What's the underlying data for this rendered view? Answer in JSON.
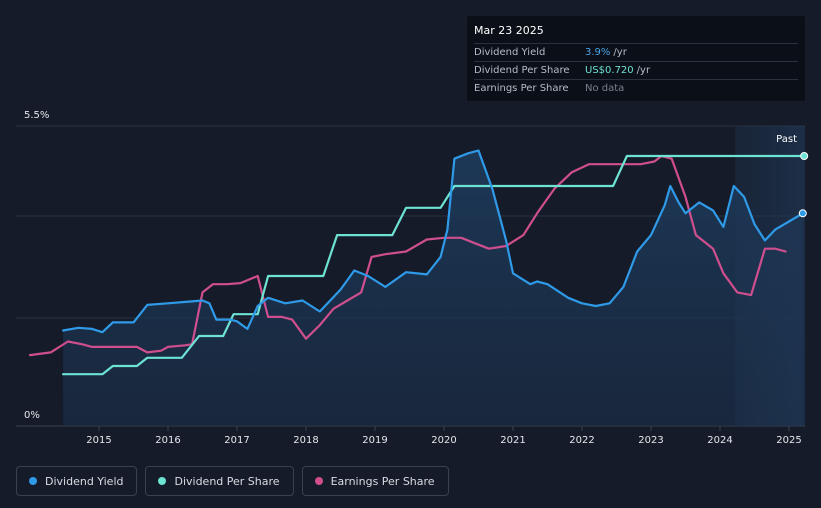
{
  "tooltip": {
    "date": "Mar 23 2025",
    "rows": [
      {
        "label": "Dividend Yield",
        "value": "3.9%",
        "unit": "/yr"
      },
      {
        "label": "Dividend Per Share",
        "value": "US$0.720",
        "unit": "/yr"
      },
      {
        "label": "Earnings Per Share",
        "value": "No data",
        "unit": ""
      }
    ]
  },
  "past_label": "Past",
  "colors": {
    "dividend_yield": "#2f9ae8",
    "dividend_per_share": "#6de3d3",
    "earnings_per_share": "#cf4f8e",
    "background": "#151b28"
  },
  "legend": [
    "Dividend Yield",
    "Dividend Per Share",
    "Earnings Per Share"
  ],
  "chart_data": {
    "type": "line",
    "y_tick_labels": [
      "0%",
      "5.5%"
    ],
    "ylim": [
      0,
      5.5
    ],
    "xlim": [
      2014.5,
      2025.22
    ],
    "x_ticks": [
      2015,
      2016,
      2017,
      2018,
      2019,
      2020,
      2021,
      2022,
      2023,
      2024,
      2025
    ],
    "series": [
      {
        "name": "Dividend Yield",
        "points": [
          [
            2014.48,
            1.75
          ],
          [
            2014.7,
            1.8
          ],
          [
            2014.9,
            1.78
          ],
          [
            2015.05,
            1.72
          ],
          [
            2015.2,
            1.9
          ],
          [
            2015.5,
            1.9
          ],
          [
            2015.7,
            2.22
          ],
          [
            2016.0,
            2.25
          ],
          [
            2016.3,
            2.28
          ],
          [
            2016.5,
            2.3
          ],
          [
            2016.6,
            2.25
          ],
          [
            2016.7,
            1.95
          ],
          [
            2016.9,
            1.95
          ],
          [
            2017.0,
            1.92
          ],
          [
            2017.15,
            1.78
          ],
          [
            2017.3,
            2.2
          ],
          [
            2017.45,
            2.35
          ],
          [
            2017.7,
            2.25
          ],
          [
            2017.95,
            2.3
          ],
          [
            2018.2,
            2.1
          ],
          [
            2018.5,
            2.5
          ],
          [
            2018.7,
            2.85
          ],
          [
            2018.9,
            2.75
          ],
          [
            2019.15,
            2.55
          ],
          [
            2019.45,
            2.82
          ],
          [
            2019.75,
            2.78
          ],
          [
            2019.95,
            3.1
          ],
          [
            2020.05,
            3.6
          ],
          [
            2020.15,
            4.9
          ],
          [
            2020.35,
            5.0
          ],
          [
            2020.5,
            5.05
          ],
          [
            2020.7,
            4.35
          ],
          [
            2020.9,
            3.4
          ],
          [
            2021.0,
            2.8
          ],
          [
            2021.25,
            2.6
          ],
          [
            2021.35,
            2.65
          ],
          [
            2021.5,
            2.6
          ],
          [
            2021.8,
            2.35
          ],
          [
            2022.0,
            2.25
          ],
          [
            2022.2,
            2.2
          ],
          [
            2022.4,
            2.25
          ],
          [
            2022.6,
            2.55
          ],
          [
            2022.8,
            3.2
          ],
          [
            2023.0,
            3.5
          ],
          [
            2023.2,
            4.05
          ],
          [
            2023.28,
            4.4
          ],
          [
            2023.4,
            4.1
          ],
          [
            2023.5,
            3.9
          ],
          [
            2023.7,
            4.1
          ],
          [
            2023.9,
            3.95
          ],
          [
            2024.05,
            3.65
          ],
          [
            2024.2,
            4.4
          ],
          [
            2024.35,
            4.2
          ],
          [
            2024.5,
            3.7
          ],
          [
            2024.65,
            3.4
          ],
          [
            2024.8,
            3.6
          ],
          [
            2025.0,
            3.75
          ],
          [
            2025.2,
            3.9
          ]
        ]
      },
      {
        "name": "Dividend Per Share",
        "points": [
          [
            2014.48,
            0.95
          ],
          [
            2015.05,
            0.95
          ],
          [
            2015.2,
            1.1
          ],
          [
            2015.55,
            1.1
          ],
          [
            2015.7,
            1.25
          ],
          [
            2016.2,
            1.25
          ],
          [
            2016.45,
            1.65
          ],
          [
            2016.8,
            1.65
          ],
          [
            2016.95,
            2.05
          ],
          [
            2017.3,
            2.05
          ],
          [
            2017.45,
            2.75
          ],
          [
            2018.25,
            2.75
          ],
          [
            2018.45,
            3.5
          ],
          [
            2019.25,
            3.5
          ],
          [
            2019.45,
            4.0
          ],
          [
            2019.95,
            4.0
          ],
          [
            2020.15,
            4.4
          ],
          [
            2022.45,
            4.4
          ],
          [
            2022.65,
            4.95
          ],
          [
            2025.22,
            4.95
          ]
        ]
      },
      {
        "name": "Earnings Per Share",
        "points": [
          [
            2014.0,
            1.3
          ],
          [
            2014.3,
            1.35
          ],
          [
            2014.55,
            1.55
          ],
          [
            2014.75,
            1.5
          ],
          [
            2014.9,
            1.45
          ],
          [
            2015.25,
            1.45
          ],
          [
            2015.55,
            1.45
          ],
          [
            2015.7,
            1.35
          ],
          [
            2015.9,
            1.38
          ],
          [
            2016.0,
            1.45
          ],
          [
            2016.25,
            1.48
          ],
          [
            2016.35,
            1.5
          ],
          [
            2016.5,
            2.45
          ],
          [
            2016.65,
            2.6
          ],
          [
            2016.85,
            2.6
          ],
          [
            2017.05,
            2.62
          ],
          [
            2017.3,
            2.75
          ],
          [
            2017.45,
            2.0
          ],
          [
            2017.65,
            2.0
          ],
          [
            2017.8,
            1.95
          ],
          [
            2018.0,
            1.6
          ],
          [
            2018.2,
            1.85
          ],
          [
            2018.4,
            2.15
          ],
          [
            2018.6,
            2.3
          ],
          [
            2018.8,
            2.45
          ],
          [
            2018.95,
            3.1
          ],
          [
            2019.15,
            3.15
          ],
          [
            2019.45,
            3.2
          ],
          [
            2019.75,
            3.42
          ],
          [
            2020.0,
            3.45
          ],
          [
            2020.25,
            3.45
          ],
          [
            2020.45,
            3.35
          ],
          [
            2020.65,
            3.25
          ],
          [
            2020.9,
            3.3
          ],
          [
            2021.15,
            3.5
          ],
          [
            2021.35,
            3.9
          ],
          [
            2021.6,
            4.35
          ],
          [
            2021.85,
            4.65
          ],
          [
            2022.1,
            4.8
          ],
          [
            2022.4,
            4.8
          ],
          [
            2022.6,
            4.8
          ],
          [
            2022.85,
            4.8
          ],
          [
            2023.05,
            4.85
          ],
          [
            2023.15,
            4.95
          ],
          [
            2023.3,
            4.9
          ],
          [
            2023.5,
            4.2
          ],
          [
            2023.65,
            3.5
          ],
          [
            2023.9,
            3.25
          ],
          [
            2024.05,
            2.8
          ],
          [
            2024.25,
            2.45
          ],
          [
            2024.45,
            2.4
          ],
          [
            2024.65,
            3.25
          ],
          [
            2024.8,
            3.25
          ],
          [
            2024.95,
            3.2
          ]
        ]
      }
    ]
  }
}
